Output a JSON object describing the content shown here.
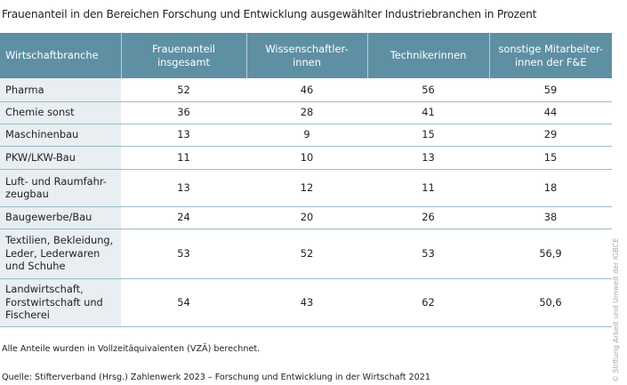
{
  "title": "Frauenanteil in den Bereichen Forschung und Entwicklung ausgewählter Industriebranchen in Prozent",
  "colors": {
    "header": "#5f8fa3",
    "first_column": "#e8eef2",
    "row_line": "#9dbcc8"
  },
  "chart_data": {
    "type": "table",
    "columns": [
      "Wirtschaftbranche",
      "Frauenanteil insgesamt",
      "Wissenschaftler-innen",
      "Technikerinnen",
      "sonstige Mitarbeiter-innen der F&E"
    ],
    "rows": [
      [
        "Pharma",
        "52",
        "46",
        "56",
        "59"
      ],
      [
        "Chemie sonst",
        "36",
        "28",
        "41",
        "44"
      ],
      [
        "Maschinenbau",
        "13",
        "9",
        "15",
        "29"
      ],
      [
        "PKW/LKW-Bau",
        "11",
        "10",
        "13",
        "15"
      ],
      [
        "Luft- und Raumfahr-zeugbau",
        "13",
        "12",
        "11",
        "18"
      ],
      [
        "Baugewerbe/Bau",
        "24",
        "20",
        "26",
        "38"
      ],
      [
        "Textilien, Bekleidung, Leder, Lederwaren und Schuhe",
        "53",
        "52",
        "53",
        "56,9"
      ],
      [
        "Landwirtschaft, Forstwirtschaft und Fischerei",
        "54",
        "43",
        "62",
        "50,6"
      ]
    ]
  },
  "footnote": "Alle Anteile wurden in Vollzeitäquivalenten (VZÄ) berechnet.",
  "source": "Quelle: Stifterverband (Hrsg.) Zahlenwerk 2023 – Forschung und Entwicklung in der Wirtschaft 2021",
  "copyright": "© Stiftung Arbeit und Umwelt der IGBCE"
}
